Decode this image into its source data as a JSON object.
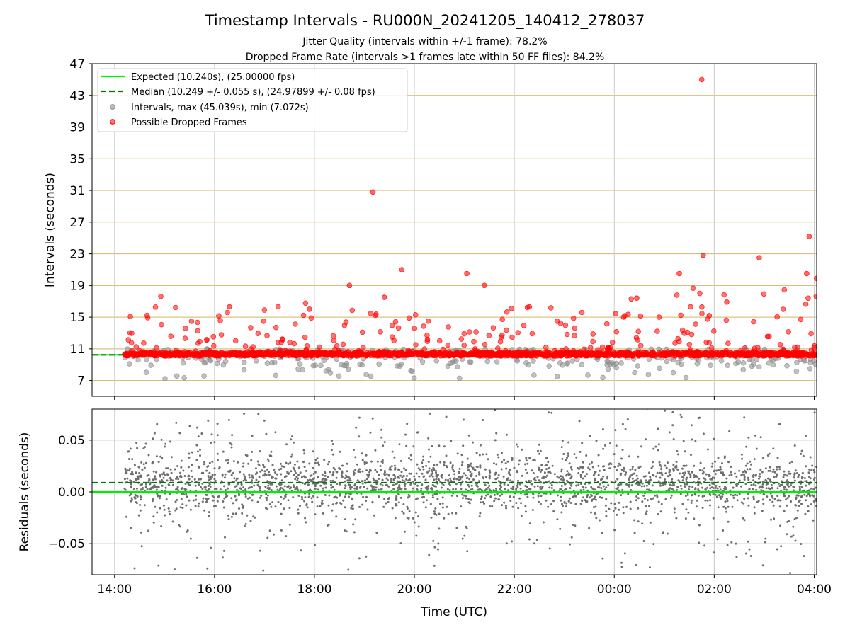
{
  "title": "Timestamp Intervals - RU000N_20241205_140412_278037",
  "subtitle_1": "Jitter Quality (intervals within +/-1 frame): 78.2%",
  "subtitle_2": "Dropped Frame Rate (intervals >1 frames late within 50 FF files): 84.2%",
  "colors": {
    "expected": "#00ee00",
    "median": "#007700",
    "intervals": "#8c8c8c",
    "dropped": "#ff0000",
    "grid_top": "#d4b468",
    "grid_bottom": "#c8c8c8",
    "residuals": "#6e6e6e"
  },
  "chart_data": [
    {
      "type": "scatter",
      "ylabel": "Intervals (seconds)",
      "xlabel": "",
      "xlim": [
        13.55,
        28.05
      ],
      "ylim": [
        5,
        47
      ],
      "y_ticks": [
        "7",
        "11",
        "15",
        "19",
        "23",
        "27",
        "31",
        "35",
        "39",
        "43",
        "47"
      ],
      "grid": true,
      "legend_position": "top-left",
      "legend": [
        {
          "kind": "line-solid",
          "label": "Expected (10.240s), (25.00000 fps)"
        },
        {
          "kind": "line-dashed",
          "label": "Median (10.249 +/- 0.055 s), (24.97899 +/- 0.08 fps)"
        },
        {
          "kind": "marker-gray",
          "label": "Intervals, max (45.039s), min (7.072s)"
        },
        {
          "kind": "marker-red",
          "label": "Possible Dropped Frames"
        }
      ],
      "expected_interval": 10.24,
      "median_interval": 10.249,
      "intervals_max": 45.039,
      "intervals_min": 7.072,
      "time_start_hours": 14.2,
      "time_end_hours": 28.05,
      "dropped_highlights": [
        {
          "x": 19.17,
          "y": 30.8
        },
        {
          "x": 25.75,
          "y": 45.0
        },
        {
          "x": 27.9,
          "y": 25.2
        },
        {
          "x": 19.75,
          "y": 21.0
        },
        {
          "x": 25.78,
          "y": 22.8
        },
        {
          "x": 26.9,
          "y": 22.5
        },
        {
          "x": 21.05,
          "y": 20.5
        },
        {
          "x": 25.3,
          "y": 20.5
        },
        {
          "x": 27.85,
          "y": 20.5
        },
        {
          "x": 18.7,
          "y": 19.0
        },
        {
          "x": 21.4,
          "y": 19.0
        },
        {
          "x": 28.05,
          "y": 19.9
        },
        {
          "x": 19.4,
          "y": 17.5
        },
        {
          "x": 24.45,
          "y": 17.4
        },
        {
          "x": 26.25,
          "y": 16.9
        },
        {
          "x": 25.9,
          "y": 15.2
        },
        {
          "x": 17.9,
          "y": 16.0
        },
        {
          "x": 22.3,
          "y": 16.3
        },
        {
          "x": 16.3,
          "y": 16.3
        }
      ]
    },
    {
      "type": "scatter",
      "ylabel": "Residuals (seconds)",
      "xlabel": "Time (UTC)",
      "xlim": [
        13.55,
        28.05
      ],
      "ylim": [
        -0.08,
        0.08
      ],
      "y_ticks": [
        "−0.05",
        "0.00",
        "0.05"
      ],
      "x_ticks": [
        "14:00",
        "16:00",
        "18:00",
        "20:00",
        "22:00",
        "00:00",
        "02:00",
        "04:00"
      ],
      "grid": true,
      "expected_residual": 0.0,
      "median_residual": 0.009
    }
  ]
}
